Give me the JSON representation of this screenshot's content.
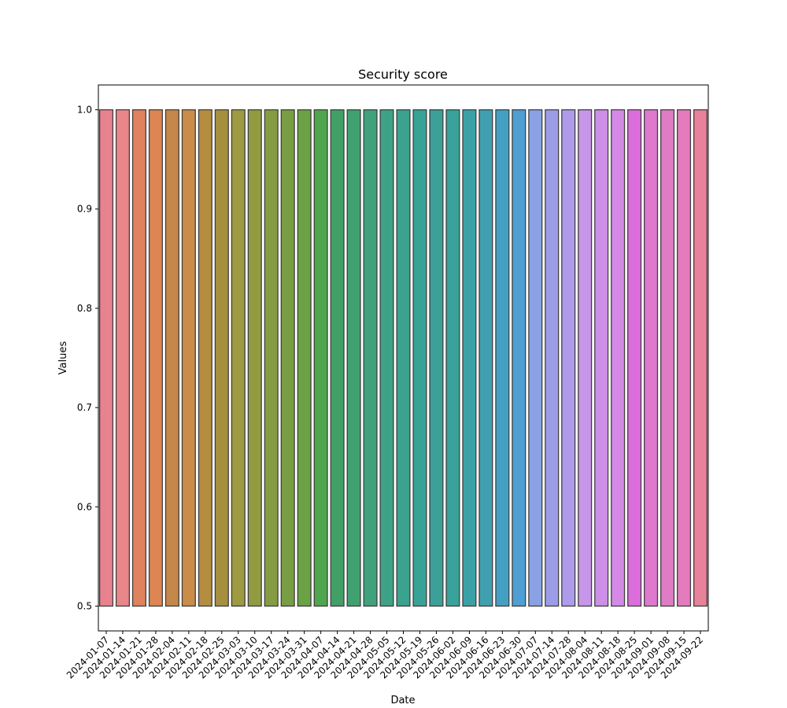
{
  "chart_data": {
    "type": "bar",
    "title": "Security score",
    "xlabel": "Date",
    "ylabel": "Values",
    "ylim": [
      0.475,
      1.025
    ],
    "yticks": [
      0.5,
      0.6,
      0.7,
      0.8,
      0.9,
      1.0
    ],
    "ytick_labels": [
      "0.5",
      "0.6",
      "0.7",
      "0.8",
      "0.9",
      "1.0"
    ],
    "grid": false,
    "categories": [
      "2024-01-07",
      "2024-01-14",
      "2024-01-21",
      "2024-01-28",
      "2024-02-04",
      "2024-02-11",
      "2024-02-18",
      "2024-02-25",
      "2024-03-03",
      "2024-03-10",
      "2024-03-17",
      "2024-03-24",
      "2024-03-31",
      "2024-04-07",
      "2024-04-14",
      "2024-04-21",
      "2024-04-28",
      "2024-05-05",
      "2024-05-12",
      "2024-05-19",
      "2024-05-26",
      "2024-06-02",
      "2024-06-09",
      "2024-06-16",
      "2024-06-23",
      "2024-06-30",
      "2024-07-07",
      "2024-07-14",
      "2024-07-28",
      "2024-08-04",
      "2024-08-11",
      "2024-08-18",
      "2024-08-25",
      "2024-09-01",
      "2024-09-08",
      "2024-09-15",
      "2024-09-22"
    ],
    "low": [
      0.5,
      0.5,
      0.5,
      0.5,
      0.5,
      0.5,
      0.5,
      0.5,
      0.5,
      0.5,
      0.5,
      0.5,
      0.5,
      0.5,
      0.5,
      0.5,
      0.5,
      0.5,
      0.5,
      0.5,
      0.5,
      0.5,
      0.5,
      0.5,
      0.5,
      0.5,
      0.5,
      0.5,
      0.5,
      0.5,
      0.5,
      0.5,
      0.5,
      0.5,
      0.5,
      0.5,
      0.5
    ],
    "high": [
      1.0,
      1.0,
      1.0,
      1.0,
      1.0,
      1.0,
      1.0,
      1.0,
      1.0,
      1.0,
      1.0,
      1.0,
      1.0,
      1.0,
      1.0,
      1.0,
      1.0,
      1.0,
      1.0,
      1.0,
      1.0,
      1.0,
      1.0,
      1.0,
      1.0,
      1.0,
      1.0,
      1.0,
      1.0,
      1.0,
      1.0,
      1.0,
      1.0,
      1.0,
      1.0,
      1.0,
      1.0
    ],
    "colors": [
      "#e8828f",
      "#e9868a",
      "#e0825d",
      "#dd8653",
      "#c4884a",
      "#c98d47",
      "#b58d40",
      "#a68f3f",
      "#9e9a41",
      "#919c40",
      "#859c43",
      "#799d44",
      "#6ba245",
      "#4fa64c",
      "#42a066",
      "#40a170",
      "#3fa27c",
      "#3ea386",
      "#3ba28f",
      "#39a297",
      "#3ca099",
      "#39a29a",
      "#3ba1a6",
      "#40a0b0",
      "#44a0c2",
      "#4f9ed4",
      "#8aa1e4",
      "#9c9de6",
      "#ae9cea",
      "#c896e8",
      "#cd8fe8",
      "#d589e6",
      "#dc6edc",
      "#de79ce",
      "#df7cc4",
      "#e47bbd",
      "#e8819a"
    ]
  }
}
